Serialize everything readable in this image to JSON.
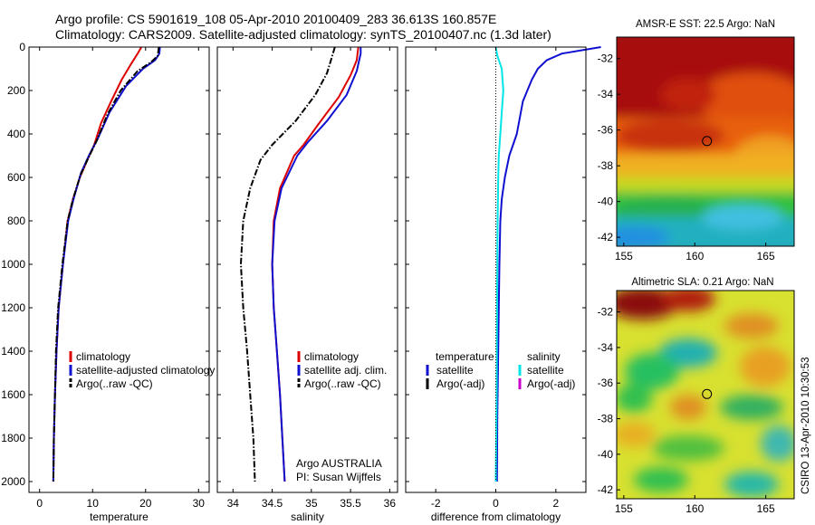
{
  "header": {
    "line1": "Argo profile: CS 5901619_108 05-Apr-2010 20100409_283 36.613S 160.857E",
    "line2": "Climatology: CARS2009. Satellite-adjusted climatology: synTS_20100407.nc (1.3d later)"
  },
  "credit": "CSIRO 13-Apr-2010 10:30:53",
  "colors": {
    "climatology": "#dd0000",
    "satellite": "#1010d0",
    "argo": "#000000",
    "sat_salinity": "#00e5e5",
    "argo_salinity": "#cc00cc"
  },
  "chart_data": [
    {
      "type": "line",
      "name": "temperature-profile",
      "xlabel": "temperature",
      "ylabel": "",
      "xlim": [
        -2,
        32
      ],
      "ylim": [
        2050,
        0
      ],
      "xticks": [
        0,
        10,
        20,
        30
      ],
      "yticks": [
        0,
        200,
        400,
        600,
        800,
        1000,
        1200,
        1400,
        1600,
        1800,
        2000
      ],
      "legend": [
        "climatology",
        "satellite-adjusted climatology",
        "Argo(..raw -QC)"
      ],
      "series": [
        {
          "name": "climatology",
          "style": "solid",
          "color": "#dd0000",
          "x": [
            19.2,
            18.5,
            17.2,
            15.5,
            13.5,
            11.6,
            10.3,
            9.0,
            7.6,
            6.3,
            5.3,
            4.4,
            3.6,
            3.2,
            2.9,
            2.7,
            2.6
          ],
          "y": [
            0,
            30,
            80,
            150,
            250,
            350,
            450,
            520,
            600,
            700,
            800,
            1000,
            1200,
            1400,
            1600,
            1800,
            2000
          ]
        },
        {
          "name": "satellite-adjusted climatology",
          "style": "solid",
          "color": "#1010d0",
          "x": [
            22.7,
            22.6,
            21.8,
            19.5,
            16.3,
            13.2,
            11.0,
            9.3,
            7.8,
            6.4,
            5.4,
            4.4,
            3.6,
            3.2,
            2.9,
            2.7,
            2.6
          ],
          "y": [
            0,
            30,
            60,
            100,
            180,
            300,
            420,
            500,
            580,
            700,
            800,
            1000,
            1200,
            1400,
            1600,
            1800,
            2000
          ]
        },
        {
          "name": "Argo(..raw -QC)",
          "style": "dashdot",
          "color": "#000000",
          "x": [
            22.5,
            22.3,
            21.0,
            18.5,
            15.3,
            12.8,
            10.8,
            9.2,
            7.7,
            6.3,
            5.3,
            4.3,
            3.5,
            3.1,
            2.9,
            2.7,
            2.6
          ],
          "y": [
            0,
            40,
            70,
            110,
            200,
            310,
            430,
            510,
            590,
            700,
            800,
            1000,
            1200,
            1400,
            1600,
            1800,
            2000
          ]
        }
      ]
    },
    {
      "type": "line",
      "name": "salinity-profile",
      "xlabel": "salinity",
      "ylabel": "",
      "xlim": [
        33.8,
        36.1
      ],
      "ylim": [
        2050,
        0
      ],
      "xticks": [
        34,
        34.5,
        35,
        35.5,
        36
      ],
      "xticklabels": [
        "34",
        "34.5",
        "35",
        "35.5",
        "36"
      ],
      "legend": [
        "climatology",
        "satellite adj. clim.",
        "Argo(..raw -QC)"
      ],
      "annotation": [
        "Argo AUSTRALIA",
        "PI: Susan Wijffels"
      ],
      "series": [
        {
          "name": "climatology",
          "style": "solid",
          "color": "#dd0000",
          "x": [
            35.6,
            35.58,
            35.5,
            35.35,
            35.1,
            34.9,
            34.78,
            34.6,
            34.52,
            34.5,
            34.52,
            34.56,
            34.6,
            34.63,
            34.66
          ],
          "y": [
            0,
            60,
            130,
            230,
            350,
            450,
            500,
            650,
            800,
            1000,
            1200,
            1400,
            1600,
            1800,
            2000
          ]
        },
        {
          "name": "satellite adj. clim.",
          "style": "solid",
          "color": "#1010d0",
          "x": [
            35.63,
            35.63,
            35.58,
            35.45,
            35.2,
            34.95,
            34.82,
            34.62,
            34.53,
            34.5,
            34.52,
            34.56,
            34.6,
            34.63,
            34.66
          ],
          "y": [
            0,
            30,
            110,
            220,
            340,
            440,
            500,
            650,
            800,
            1000,
            1200,
            1400,
            1600,
            1800,
            2000
          ]
        },
        {
          "name": "Argo(..raw -QC)",
          "style": "dashdot",
          "color": "#000000",
          "x": [
            35.3,
            35.25,
            35.2,
            35.05,
            34.8,
            34.5,
            34.35,
            34.22,
            34.13,
            34.1,
            34.13,
            34.18,
            34.22,
            34.26,
            34.28
          ],
          "y": [
            0,
            60,
            120,
            220,
            340,
            450,
            520,
            650,
            800,
            1000,
            1200,
            1400,
            1600,
            1800,
            2000
          ]
        }
      ]
    },
    {
      "type": "line",
      "name": "difference-profile",
      "xlabel": "difference from climatology",
      "ylabel": "",
      "xlim": [
        -3,
        3
      ],
      "ylim": [
        2050,
        0
      ],
      "xticks": [
        -2,
        0,
        2
      ],
      "legend_columns": [
        {
          "header": "temperature",
          "items": [
            {
              "label": "satellite",
              "color": "#1010d0"
            },
            {
              "label": "Argo(-adj)",
              "color": "#000000"
            }
          ]
        },
        {
          "header": "salinity",
          "items": [
            {
              "label": "satellite",
              "color": "#00e5e5"
            },
            {
              "label": "Argo(-adj)",
              "color": "#cc00cc"
            }
          ]
        }
      ],
      "series": [
        {
          "name": "temperature satellite",
          "style": "solid",
          "color": "#1010d0",
          "x": [
            3.5,
            2.2,
            1.7,
            1.4,
            1.2,
            0.9,
            0.7,
            0.45,
            0.3,
            0.2,
            0.15,
            0.12,
            0.1,
            0.08,
            0.05,
            0.04
          ],
          "y": [
            0,
            30,
            60,
            100,
            150,
            250,
            400,
            500,
            600,
            700,
            800,
            1000,
            1200,
            1400,
            1700,
            2000
          ]
        },
        {
          "name": "salinity satellite",
          "style": "solid",
          "color": "#00e5e5",
          "x": [
            0.0,
            0.05,
            0.2,
            0.25,
            0.2,
            0.15,
            0.1,
            0.08,
            0.06,
            0.05,
            0.04,
            0.03,
            0.0
          ],
          "y": [
            0,
            40,
            100,
            200,
            300,
            400,
            500,
            600,
            800,
            1000,
            1300,
            1600,
            2000
          ]
        },
        {
          "name": "zero reference",
          "style": "dotted",
          "color": "#000000",
          "x": [
            0,
            0
          ],
          "y": [
            0,
            2000
          ]
        }
      ]
    },
    {
      "type": "heatmap",
      "name": "sst-map",
      "title": "AMSR-E SST: 22.5 Argo: NaN",
      "xlim": [
        154.5,
        167
      ],
      "ylim": [
        -42.5,
        -30.8
      ],
      "xticks": [
        155,
        160,
        165
      ],
      "yticks": [
        -32,
        -34,
        -36,
        -38,
        -40,
        -42
      ],
      "float_position": {
        "lon": 160.857,
        "lat": -36.613
      }
    },
    {
      "type": "heatmap",
      "name": "sla-map",
      "title": "Altimetric SLA: 0.21 Argo: NaN",
      "xlim": [
        154.5,
        167
      ],
      "ylim": [
        -42.5,
        -30.8
      ],
      "xticks": [
        155,
        160,
        165
      ],
      "yticks": [
        -32,
        -34,
        -36,
        -38,
        -40,
        -42
      ],
      "float_position": {
        "lon": 160.857,
        "lat": -36.613
      }
    }
  ]
}
